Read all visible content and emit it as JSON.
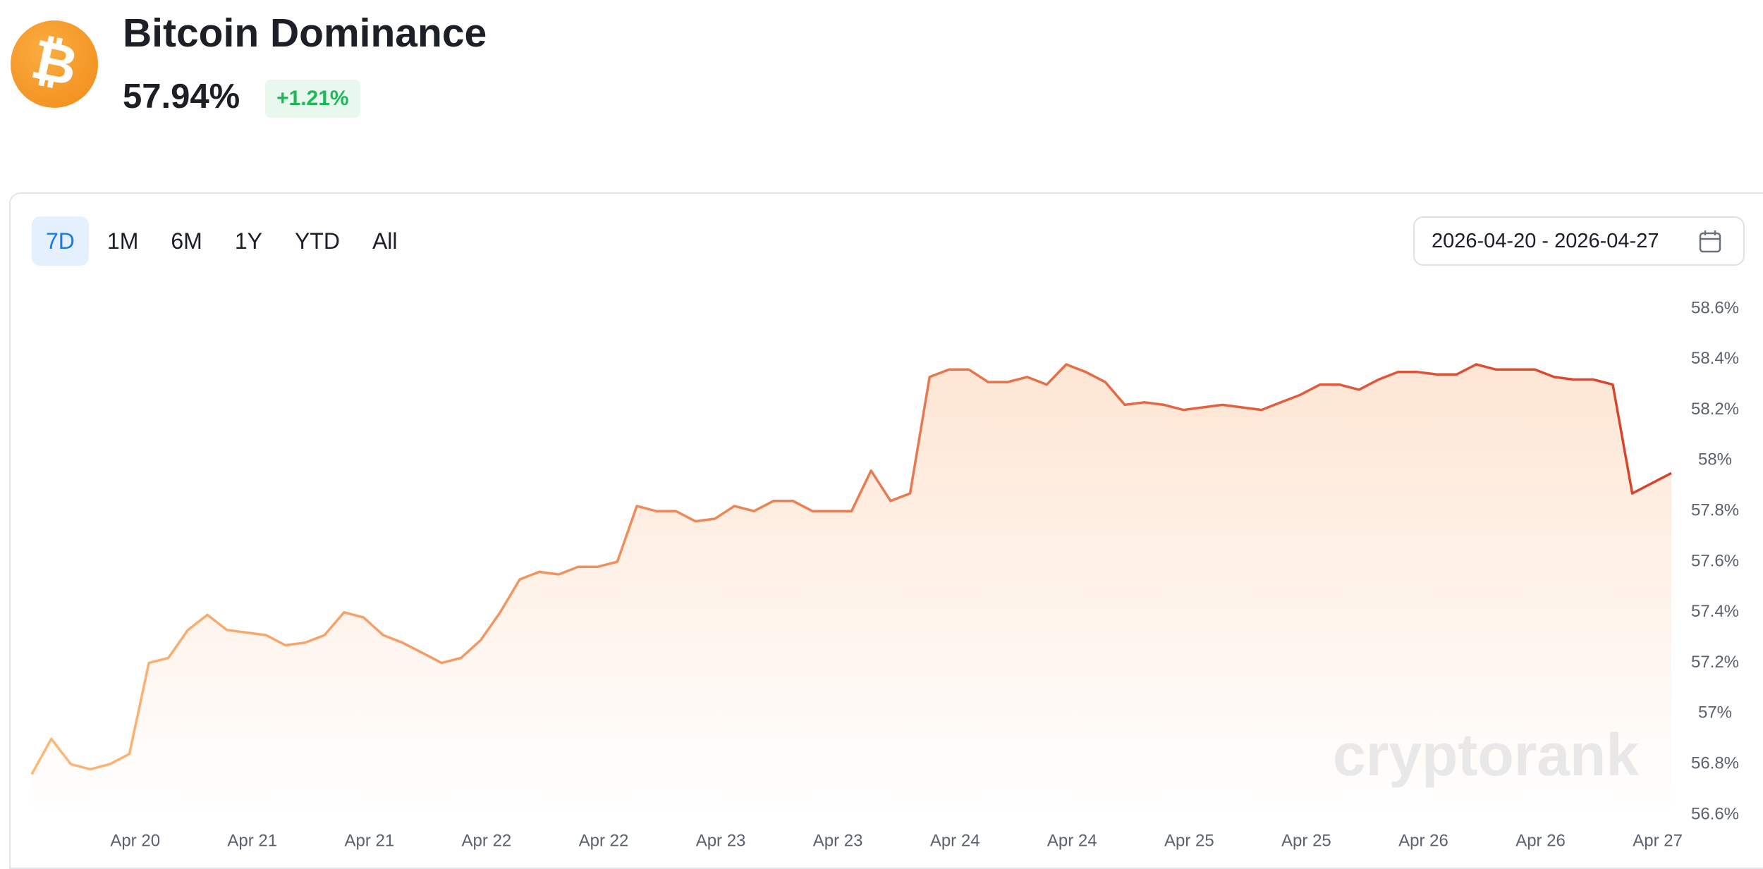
{
  "header": {
    "title": "Bitcoin Dominance",
    "value": "57.94%",
    "change": "+1.21%"
  },
  "controls": {
    "tabs": [
      "7D",
      "1M",
      "6M",
      "1Y",
      "YTD",
      "All"
    ],
    "date_range": "2026-04-20 - 2026-04-27"
  },
  "watermark": "cryptorank",
  "chart_data": {
    "type": "line",
    "series": [
      {
        "values": [
          56.76,
          56.9,
          56.8,
          56.78,
          56.8,
          56.84,
          57.2,
          57.22,
          57.33,
          57.39,
          57.33,
          57.32,
          57.31,
          57.27,
          57.28,
          57.31,
          57.4,
          57.38,
          57.31,
          57.28,
          57.24,
          57.2,
          57.22,
          57.29,
          57.4,
          57.53,
          57.56,
          57.55,
          57.58,
          57.58,
          57.6,
          57.82,
          57.8,
          57.8,
          57.76,
          57.77,
          57.82,
          57.8,
          57.84,
          57.84,
          57.8,
          57.8,
          57.8,
          57.96,
          57.84,
          57.87,
          58.33,
          58.36,
          58.36,
          58.31,
          58.31,
          58.33,
          58.3,
          58.38,
          58.35,
          58.31,
          58.22,
          58.23,
          58.22,
          58.2,
          58.21,
          58.22,
          58.21,
          58.2,
          58.23,
          58.26,
          58.3,
          58.3,
          58.28,
          58.32,
          58.35,
          58.35,
          58.34,
          58.34,
          58.38,
          58.36,
          58.36,
          58.36,
          58.33,
          58.32,
          58.32,
          58.3,
          57.87,
          57.91,
          57.95
        ]
      }
    ],
    "line_gradient": [
      "#fdb877",
      "#d8412a"
    ],
    "area_color": "#fde3cf",
    "xlim": [
      0,
      84
    ],
    "xticks": [
      {
        "value": 5.3,
        "label": "Apr 20"
      },
      {
        "value": 11.3,
        "label": "Apr 21"
      },
      {
        "value": 17.3,
        "label": "Apr 21"
      },
      {
        "value": 23.3,
        "label": "Apr 22"
      },
      {
        "value": 29.3,
        "label": "Apr 22"
      },
      {
        "value": 35.3,
        "label": "Apr 23"
      },
      {
        "value": 41.3,
        "label": "Apr 23"
      },
      {
        "value": 47.3,
        "label": "Apr 24"
      },
      {
        "value": 53.3,
        "label": "Apr 24"
      },
      {
        "value": 59.3,
        "label": "Apr 25"
      },
      {
        "value": 65.3,
        "label": "Apr 25"
      },
      {
        "value": 71.3,
        "label": "Apr 26"
      },
      {
        "value": 77.3,
        "label": "Apr 26"
      },
      {
        "value": 83.3,
        "label": "Apr 27"
      }
    ],
    "ylim": [
      56.6,
      58.6
    ],
    "yticks": [
      {
        "value": 56.6,
        "label": "56.6%"
      },
      {
        "value": 56.8,
        "label": "56.8%"
      },
      {
        "value": 57,
        "label": "57%"
      },
      {
        "value": 57.2,
        "label": "57.2%"
      },
      {
        "value": 57.4,
        "label": "57.4%"
      },
      {
        "value": 57.6,
        "label": "57.6%"
      },
      {
        "value": 57.8,
        "label": "57.8%"
      },
      {
        "value": 58,
        "label": "58%"
      },
      {
        "value": 58.2,
        "label": "58.2%"
      },
      {
        "value": 58.4,
        "label": "58.4%"
      },
      {
        "value": 58.6,
        "label": "58.6%"
      }
    ]
  }
}
